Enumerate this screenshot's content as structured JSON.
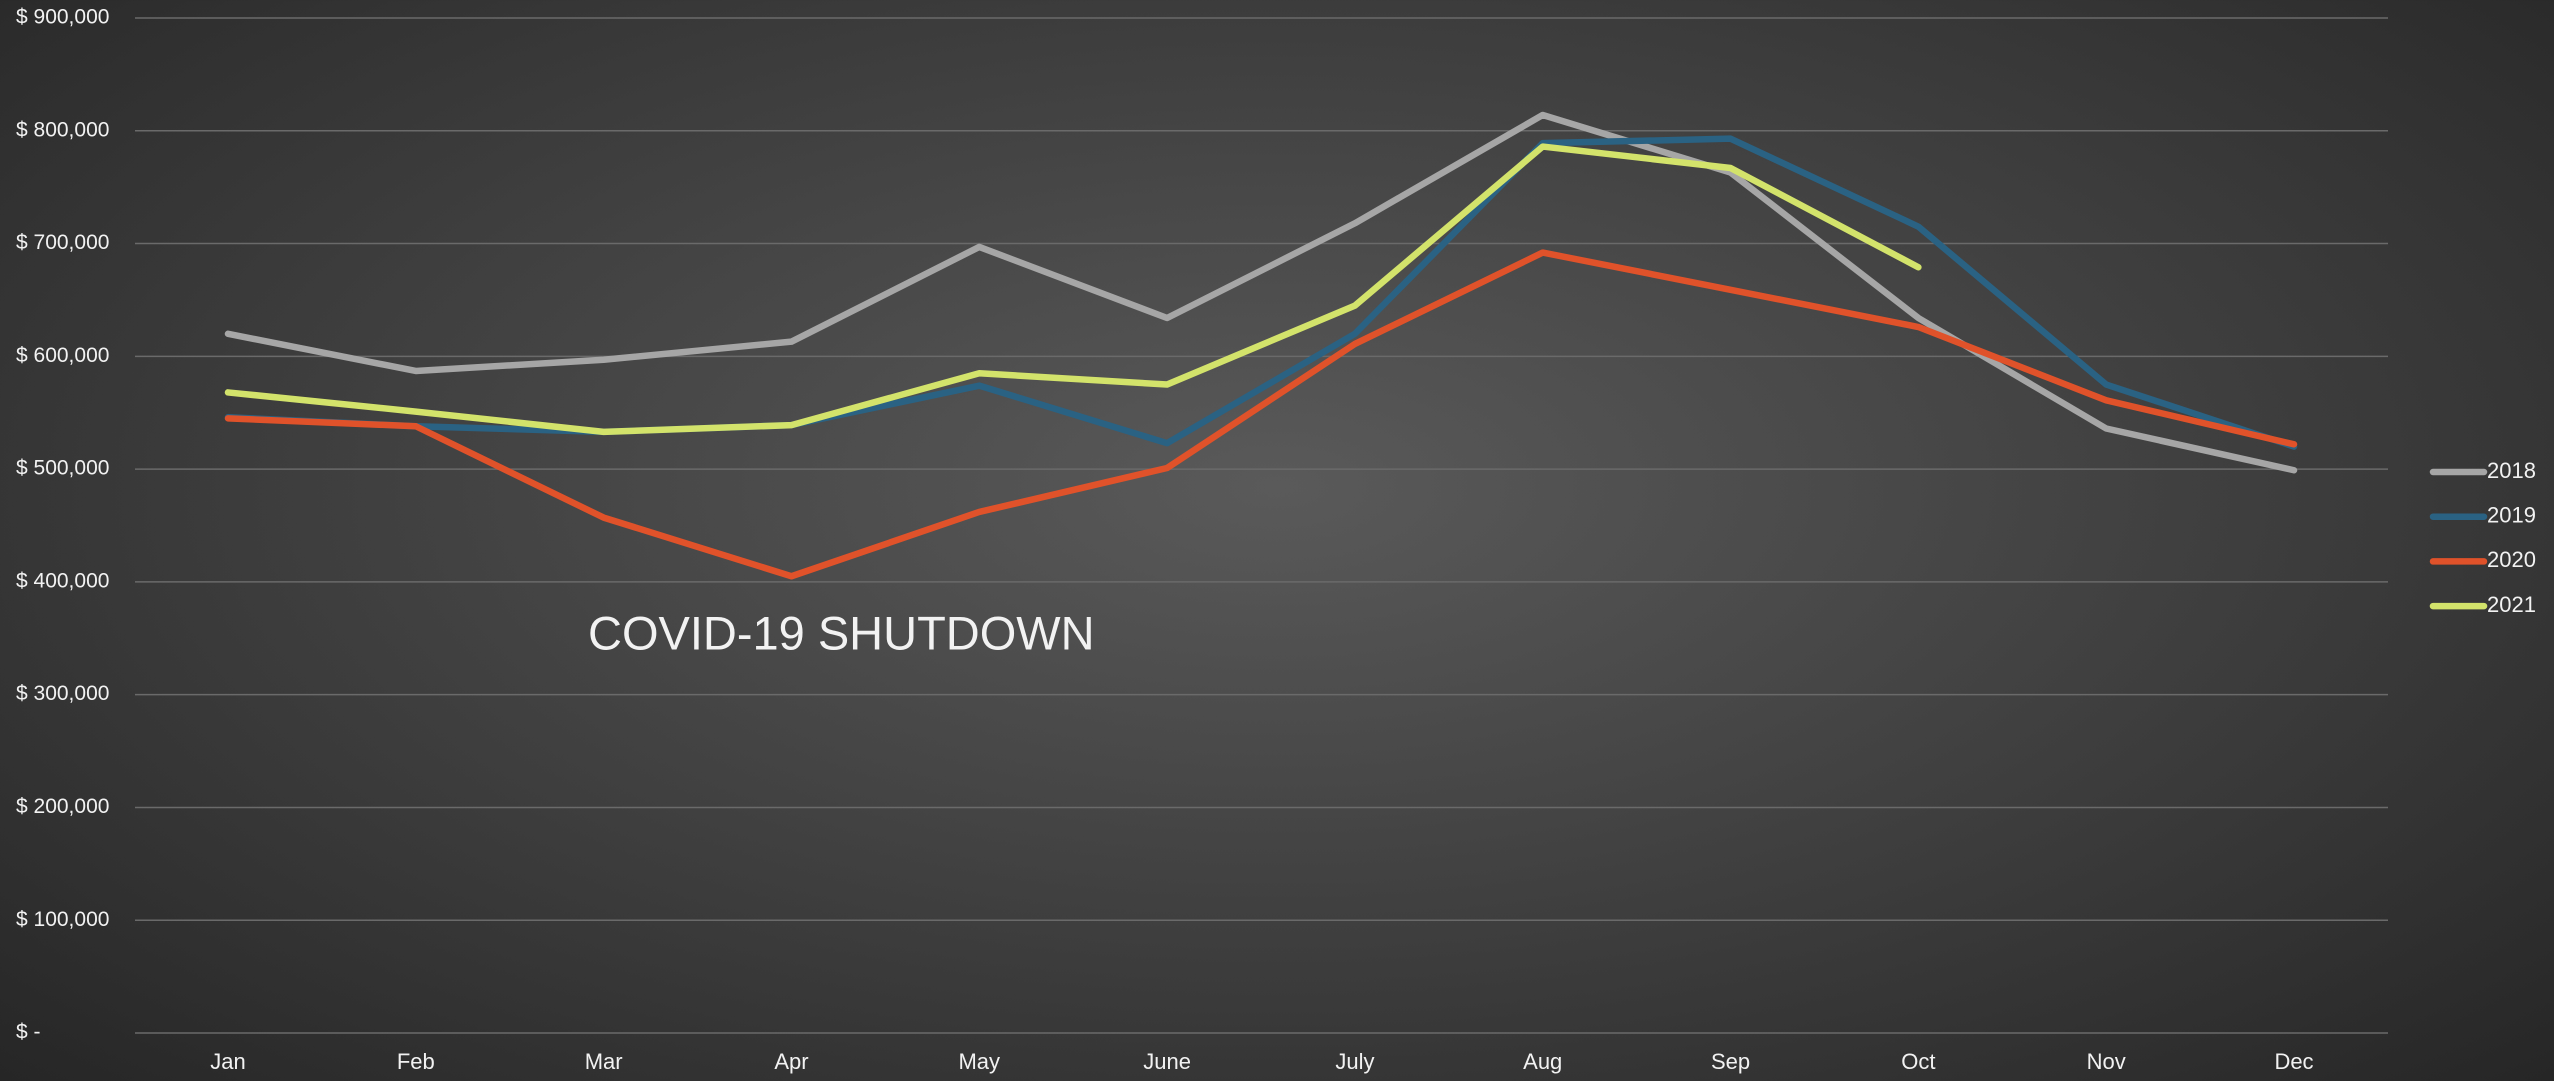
{
  "chart_data": {
    "type": "line",
    "annotation": "COVID-19 SHUTDOWN",
    "categories": [
      "Jan",
      "Feb",
      "Mar",
      "Apr",
      "May",
      "June",
      "July",
      "Aug",
      "Sep",
      "Oct",
      "Nov",
      "Dec"
    ],
    "series": [
      {
        "name": "2018",
        "color": "#a6a6a6",
        "values": [
          620000,
          587000,
          597000,
          613000,
          697000,
          634000,
          718000,
          814000,
          763000,
          634000,
          536000,
          499000
        ]
      },
      {
        "name": "2019",
        "color": "#2a6283",
        "values": [
          546000,
          538000,
          533000,
          539000,
          574000,
          523000,
          620000,
          789000,
          793000,
          715000,
          575000,
          520000
        ]
      },
      {
        "name": "2020",
        "color": "#e0522a",
        "values": [
          545000,
          538000,
          457000,
          405000,
          462000,
          501000,
          611000,
          692000,
          659000,
          626000,
          561000,
          522000
        ]
      },
      {
        "name": "2021",
        "color": "#d3e36b",
        "values": [
          568000,
          551000,
          533000,
          539000,
          585000,
          575000,
          645000,
          786000,
          767000,
          679000,
          null,
          null
        ]
      }
    ],
    "ylim": [
      0,
      900000
    ],
    "yticks": [
      {
        "value": 0,
        "label": "$ -"
      },
      {
        "value": 100000,
        "label": "$ 100,000"
      },
      {
        "value": 200000,
        "label": "$ 200,000"
      },
      {
        "value": 300000,
        "label": "$ 300,000"
      },
      {
        "value": 400000,
        "label": "$ 400,000"
      },
      {
        "value": 500000,
        "label": "$ 500,000"
      },
      {
        "value": 600000,
        "label": "$ 600,000"
      },
      {
        "value": 700000,
        "label": "$ 700,000"
      },
      {
        "value": 800000,
        "label": "$ 800,000"
      },
      {
        "value": 900000,
        "label": "$ 900,000"
      }
    ],
    "grid": true,
    "legend": "right"
  }
}
